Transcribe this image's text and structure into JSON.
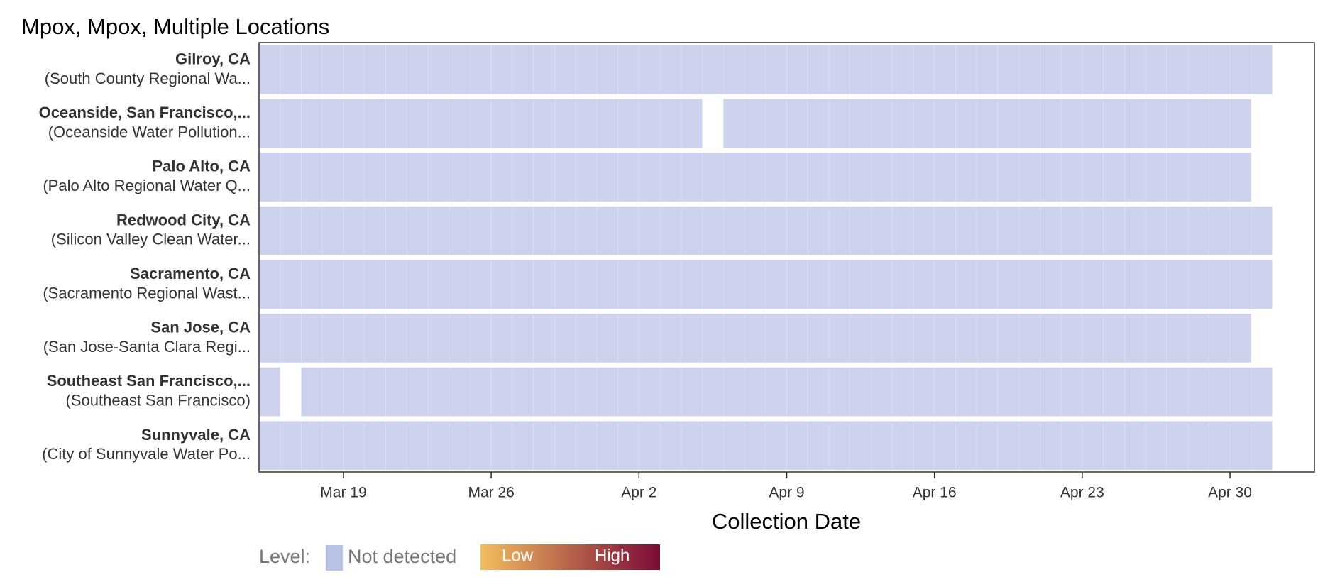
{
  "chart_data": {
    "type": "timeline-heatmap",
    "title": "Mpox, Mpox, Multiple Locations",
    "x_label": "Collection Date",
    "xlim": [
      "Mar 15",
      "May 4"
    ],
    "xticks": [
      "Mar 19",
      "Mar 26",
      "Apr 2",
      "Apr 9",
      "Apr 16",
      "Apr 23",
      "Apr 30"
    ],
    "rows": [
      {
        "name": "Gilroy, CA",
        "site": "(South County Regional Wa...",
        "segments": [
          [
            "Mar 15",
            "May 1"
          ]
        ]
      },
      {
        "name": "Oceanside, San Francisco,...",
        "site": "(Oceanside Water Pollution...",
        "segments": [
          [
            "Mar 15",
            "Apr 4"
          ],
          [
            "Apr 6",
            "Apr 30"
          ]
        ]
      },
      {
        "name": "Palo Alto, CA",
        "site": "(Palo Alto Regional Water Q...",
        "segments": [
          [
            "Mar 15",
            "Apr 30"
          ]
        ]
      },
      {
        "name": "Redwood City, CA",
        "site": "(Silicon Valley Clean Water...",
        "segments": [
          [
            "Mar 15",
            "May 1"
          ]
        ]
      },
      {
        "name": "Sacramento, CA",
        "site": "(Sacramento Regional Wast...",
        "segments": [
          [
            "Mar 15",
            "May 1"
          ]
        ]
      },
      {
        "name": "San Jose, CA",
        "site": "(San Jose-Santa Clara Regi...",
        "segments": [
          [
            "Mar 15",
            "Apr 30"
          ]
        ]
      },
      {
        "name": "Southeast San Francisco,...",
        "site": "(Southeast San Francisco)",
        "segments": [
          [
            "Mar 15",
            "Mar 15"
          ],
          [
            "Mar 17",
            "May 1"
          ]
        ]
      },
      {
        "name": "Sunnyvale, CA",
        "site": "(City of Sunnyvale Water Po...",
        "segments": [
          [
            "Mar 15",
            "May 1"
          ]
        ]
      }
    ],
    "legend": {
      "title": "Level:",
      "not_detected": "Not detected",
      "not_detected_color": "#b8c1e6",
      "low": "Low",
      "high": "High",
      "low_color": "#f3bd5e",
      "high_color": "#7b0a37"
    }
  }
}
